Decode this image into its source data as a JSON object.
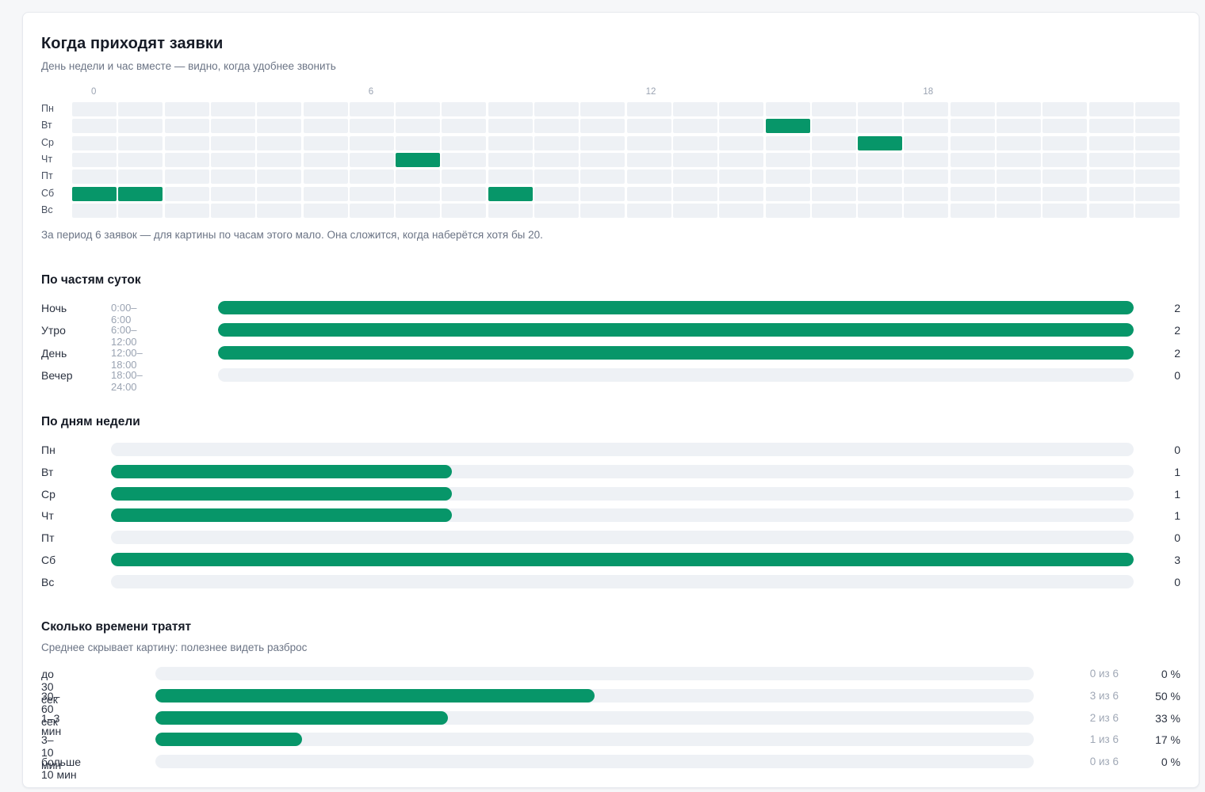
{
  "title": "Когда приходят заявки",
  "subtitle": "День недели и час вместе — видно, когда удобнее звонить",
  "heatmap": {
    "hour_ticks": [
      "0",
      "6",
      "12",
      "18"
    ],
    "days": [
      "Пн",
      "Вт",
      "Ср",
      "Чт",
      "Пт",
      "Сб",
      "Вс"
    ],
    "active_cells": [
      {
        "day": "Вт",
        "hour": 15
      },
      {
        "day": "Ср",
        "hour": 17
      },
      {
        "day": "Чт",
        "hour": 7
      },
      {
        "day": "Сб",
        "hour": 0
      },
      {
        "day": "Сб",
        "hour": 1
      },
      {
        "day": "Сб",
        "hour": 9
      }
    ],
    "note": "За период 6 заявок — для картины по часам этого мало. Она сложится, когда наберётся хотя бы 20."
  },
  "parts_of_day": {
    "title": "По частям суток",
    "max": 2,
    "rows": [
      {
        "label": "Ночь",
        "range": "0:00–6:00",
        "value": 2
      },
      {
        "label": "Утро",
        "range": "6:00–12:00",
        "value": 2
      },
      {
        "label": "День",
        "range": "12:00–18:00",
        "value": 2
      },
      {
        "label": "Вечер",
        "range": "18:00–24:00",
        "value": 0
      }
    ]
  },
  "weekdays": {
    "title": "По дням недели",
    "max": 3,
    "rows": [
      {
        "label": "Пн",
        "value": 0
      },
      {
        "label": "Вт",
        "value": 1
      },
      {
        "label": "Ср",
        "value": 1
      },
      {
        "label": "Чт",
        "value": 1
      },
      {
        "label": "Пт",
        "value": 0
      },
      {
        "label": "Сб",
        "value": 3
      },
      {
        "label": "Вс",
        "value": 0
      }
    ]
  },
  "time_spent": {
    "title": "Сколько времени тратят",
    "subtitle": "Среднее скрывает картину: полезнее видеть разброс",
    "total": 6,
    "rows": [
      {
        "label": "до 30 сек",
        "count": 0,
        "fraction_text": "0 из 6",
        "percent_text": "0 %"
      },
      {
        "label": "30–60 сек",
        "count": 3,
        "fraction_text": "3 из 6",
        "percent_text": "50 %"
      },
      {
        "label": "1–3 мин",
        "count": 2,
        "fraction_text": "2 из 6",
        "percent_text": "33 %"
      },
      {
        "label": "3–10 мин",
        "count": 1,
        "fraction_text": "1 из 6",
        "percent_text": "17 %"
      },
      {
        "label": "больше 10 мин",
        "count": 0,
        "fraction_text": "0 из 6",
        "percent_text": "0 %"
      }
    ]
  },
  "colors": {
    "accent": "#079669",
    "track": "#eef1f5"
  }
}
